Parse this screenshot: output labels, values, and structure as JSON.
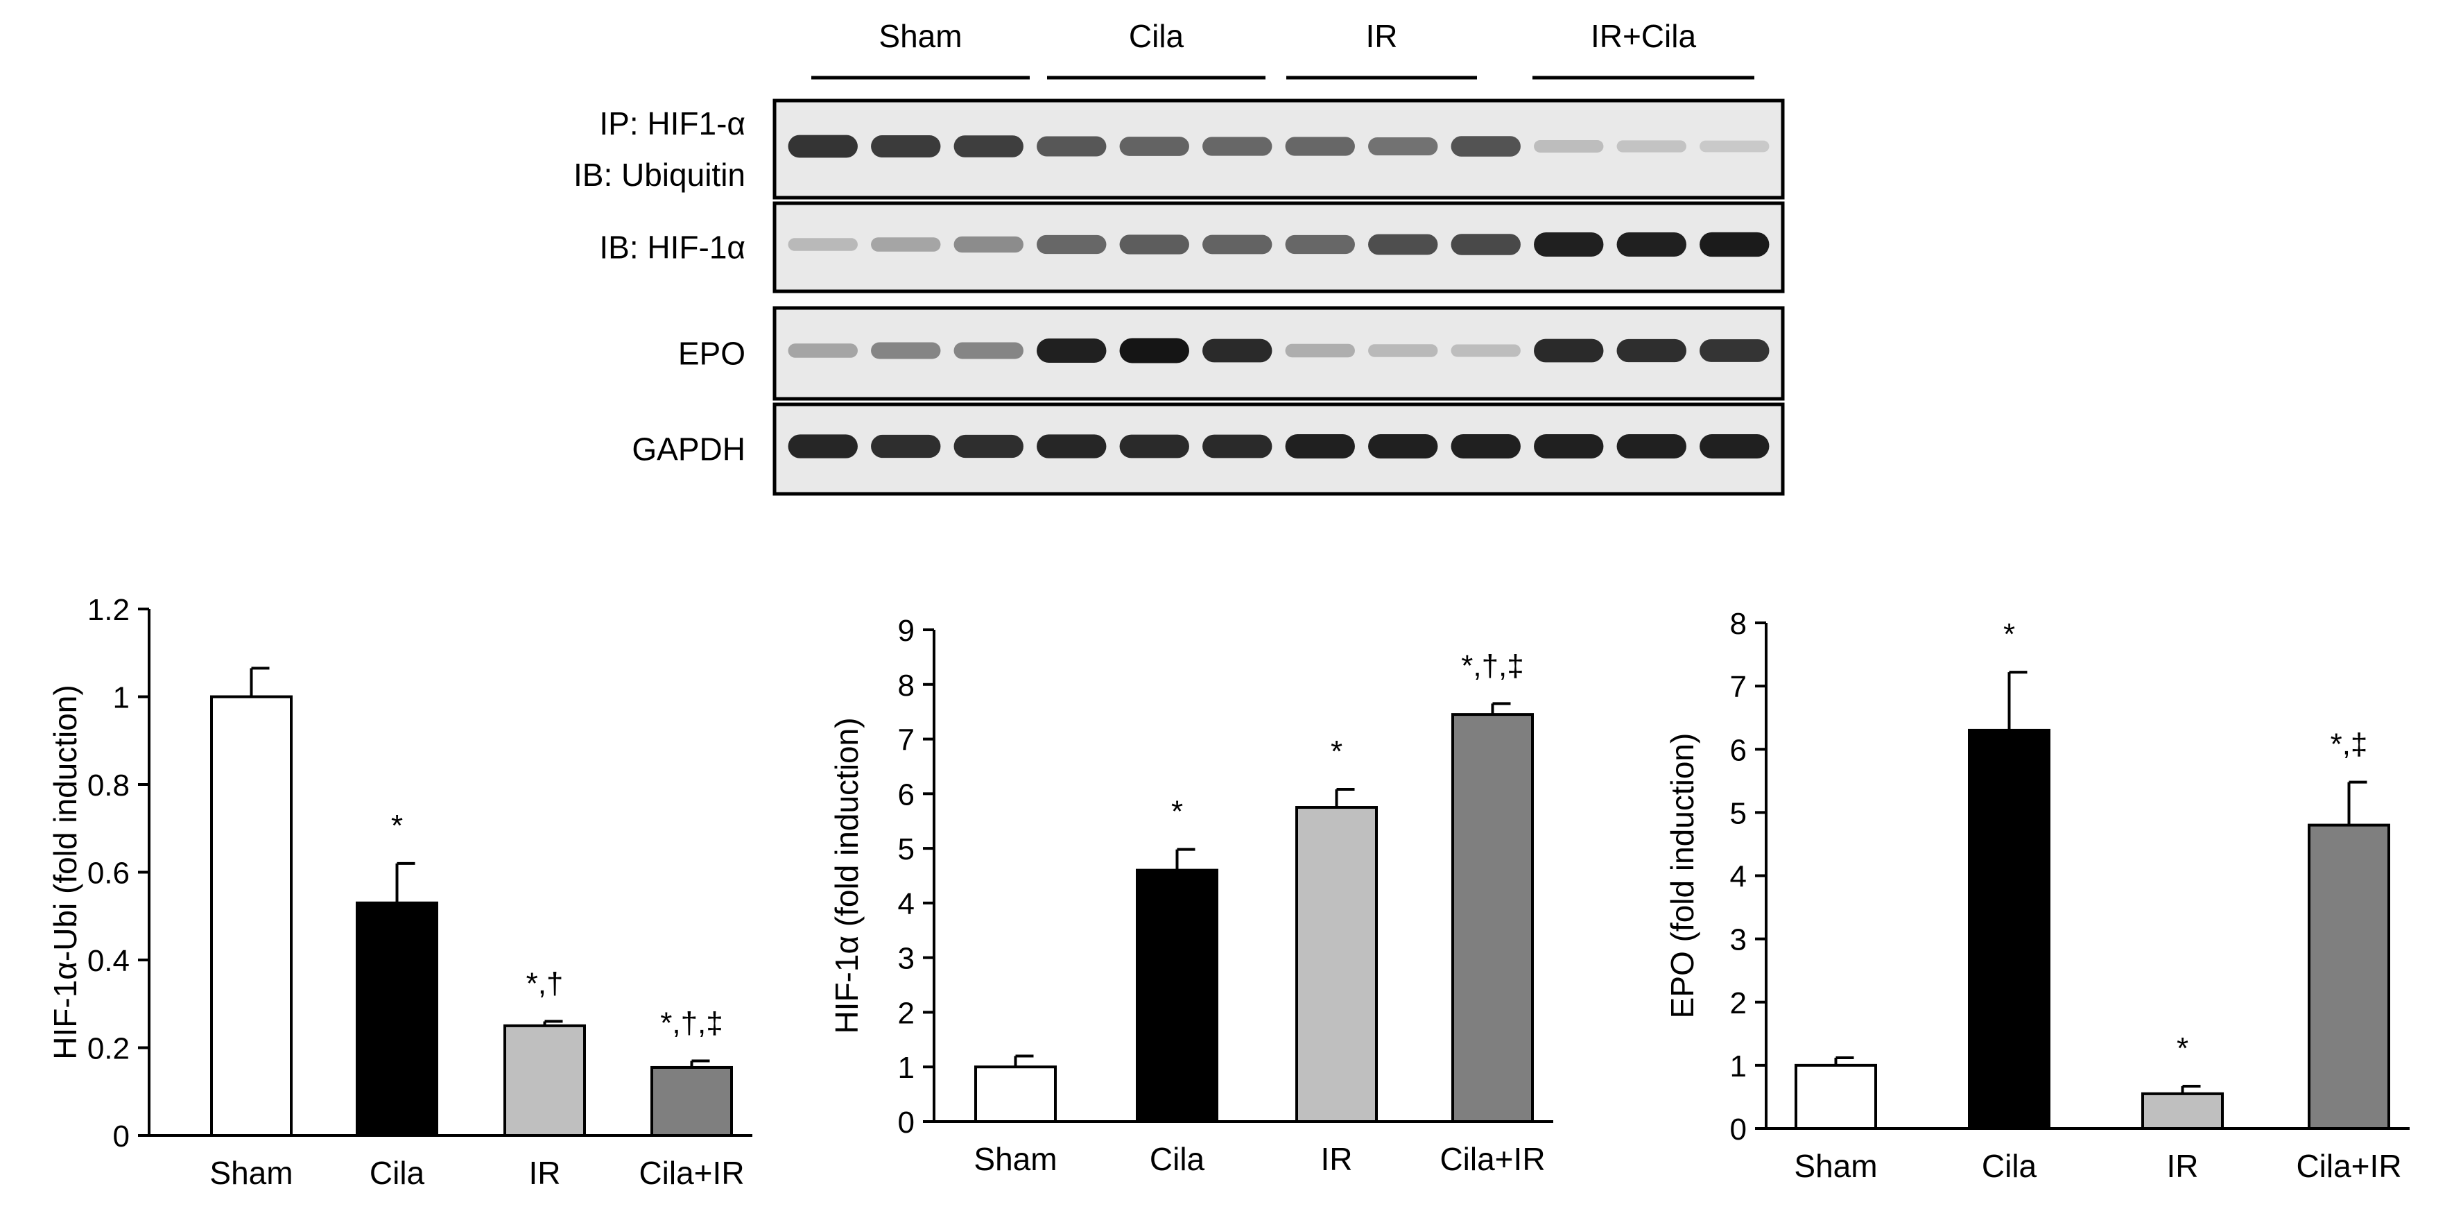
{
  "blot": {
    "groups": [
      "Sham",
      "Cila",
      "IR",
      "IR+Cila"
    ],
    "lanes_per_group": 3,
    "rows": [
      {
        "lines": [
          "IP: HIF1-α",
          "IB: Ubiquitin"
        ],
        "intensity": [
          0.85,
          0.82,
          0.8,
          0.68,
          0.62,
          0.6,
          0.6,
          0.55,
          0.7,
          0.18,
          0.15,
          0.12
        ]
      },
      {
        "lines": [
          "IB: HIF-1α"
        ],
        "intensity": [
          0.2,
          0.3,
          0.42,
          0.6,
          0.65,
          0.62,
          0.6,
          0.72,
          0.75,
          0.95,
          0.95,
          0.97
        ]
      },
      {
        "lines": [
          "EPO"
        ],
        "intensity": [
          0.3,
          0.45,
          0.45,
          0.95,
          1.0,
          0.9,
          0.25,
          0.2,
          0.18,
          0.9,
          0.88,
          0.85
        ]
      },
      {
        "lines": [
          "GAPDH"
        ],
        "intensity": [
          0.92,
          0.88,
          0.88,
          0.92,
          0.9,
          0.9,
          0.95,
          0.95,
          0.95,
          0.95,
          0.95,
          0.95
        ]
      }
    ]
  },
  "chart_data": [
    {
      "type": "bar",
      "ylabel": "HIF-1α-Ubi  (fold induction)",
      "categories": [
        "Sham",
        "Cila",
        "IR",
        "Cila+IR"
      ],
      "values": [
        1.0,
        0.53,
        0.25,
        0.155
      ],
      "errors": [
        0.065,
        0.09,
        0.01,
        0.015
      ],
      "annotations": [
        "",
        "*",
        "*,†",
        "*,†,‡"
      ],
      "colors": [
        "#ffffff",
        "#000000",
        "#bfbfbf",
        "#7f7f7f"
      ],
      "ylim": [
        0,
        1.2
      ],
      "yticks": [
        "0",
        "0.2",
        "0.4",
        "0.6",
        "0.8",
        "1",
        "1.2"
      ]
    },
    {
      "type": "bar",
      "ylabel": "HIF-1α  (fold induction)",
      "categories": [
        "Sham",
        "Cila",
        "IR",
        "Cila+IR"
      ],
      "values": [
        1.0,
        4.6,
        5.75,
        7.45
      ],
      "errors": [
        0.2,
        0.38,
        0.33,
        0.2
      ],
      "annotations": [
        "",
        "*",
        "*",
        "*,†,‡"
      ],
      "colors": [
        "#ffffff",
        "#000000",
        "#bfbfbf",
        "#7f7f7f"
      ],
      "ylim": [
        0,
        9
      ],
      "yticks": [
        "0",
        "1",
        "2",
        "3",
        "4",
        "5",
        "6",
        "7",
        "8",
        "9"
      ]
    },
    {
      "type": "bar",
      "ylabel": "EPO (fold induction)",
      "categories": [
        "Sham",
        "Cila",
        "IR",
        "Cila+IR"
      ],
      "values": [
        1.0,
        6.3,
        0.55,
        4.8
      ],
      "errors": [
        0.12,
        0.92,
        0.12,
        0.68
      ],
      "annotations": [
        "",
        "*",
        "*",
        "*,‡"
      ],
      "colors": [
        "#ffffff",
        "#000000",
        "#bfbfbf",
        "#7f7f7f"
      ],
      "ylim": [
        0,
        8
      ],
      "yticks": [
        "0",
        "1",
        "2",
        "3",
        "4",
        "5",
        "6",
        "7",
        "8"
      ]
    }
  ]
}
